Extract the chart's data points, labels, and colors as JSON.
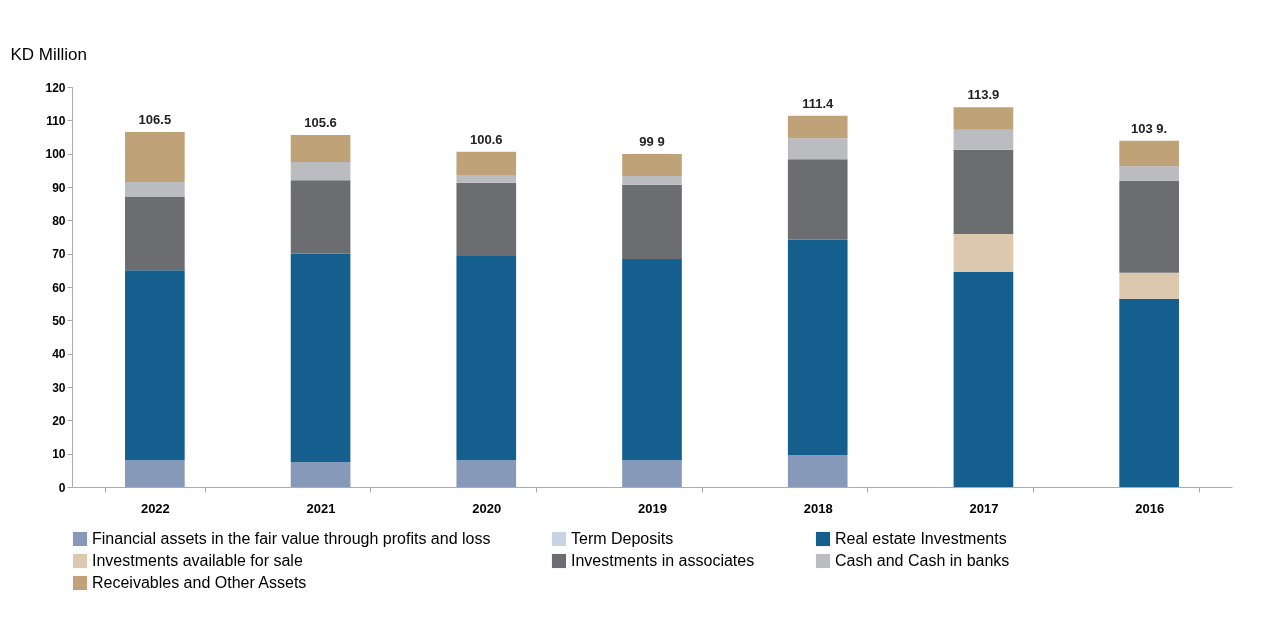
{
  "chart_data": {
    "type": "bar",
    "stacked": true,
    "ylabel": "KD Million",
    "categories": [
      "2022",
      "2021",
      "2020",
      "2019",
      "2018",
      "2017",
      "2016"
    ],
    "series": [
      {
        "name": "Financial assets in the fair value through profits and loss",
        "color": "#8799b9",
        "values": [
          8,
          7.5,
          8,
          8,
          9.6,
          null,
          null
        ]
      },
      {
        "name": "Term Deposits",
        "color": "#c8d4e2",
        "values": [
          null,
          null,
          null,
          null,
          null,
          null,
          null
        ]
      },
      {
        "name": "Real estate Investments",
        "color": "#155f8f",
        "values": [
          57,
          62.5,
          61.3,
          60.4,
          64.6,
          64.6,
          56.5
        ]
      },
      {
        "name": "Investments available for sale",
        "color": "#dcc8ae",
        "values": [
          null,
          null,
          null,
          null,
          null,
          11.3,
          7.8
        ]
      },
      {
        "name": "Investments in associates",
        "color": "#6c6d71",
        "values": [
          22,
          22,
          22,
          22.3,
          24.1,
          25.3,
          27.6
        ]
      },
      {
        "name": "Cash and Cash in banks",
        "color": "#bbbcc0",
        "values": [
          4.5,
          5.5,
          2.3,
          2.6,
          6.3,
          6,
          4.3
        ]
      },
      {
        "name": "Receivables and Other Assets",
        "color": "#c0a278",
        "values": [
          15,
          8.1,
          7,
          6.6,
          6.8,
          6.7,
          7.7
        ]
      }
    ],
    "totals": [
      "106.5",
      "105.6",
      "100.6",
      "99 9",
      "111.4",
      "113.9",
      "103 9."
    ],
    "ylim": [
      0,
      120
    ],
    "yticks": [
      0,
      10,
      20,
      30,
      40,
      50,
      60,
      70,
      80,
      90,
      100,
      110,
      120
    ],
    "grid": false,
    "legend": "bottom"
  }
}
